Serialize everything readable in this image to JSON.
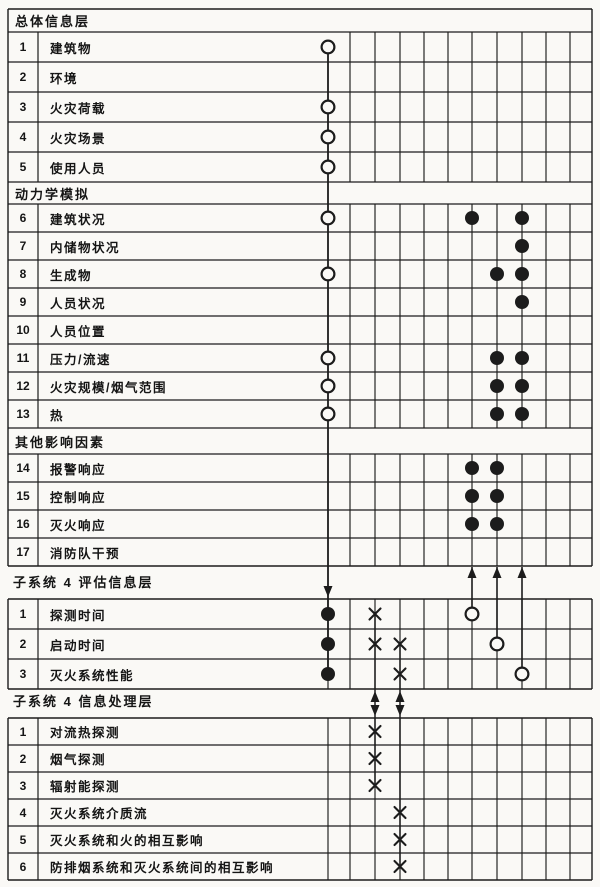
{
  "diagram": {
    "background": "#faf9f6",
    "line_color": "#1c1c1c",
    "marker_glyphs": {
      "circle": "open-circle",
      "dot": "filled-circle",
      "cross": "x-mark"
    },
    "tables": [
      {
        "id": "overall-information-layer",
        "blocks": [
          {
            "type": "band",
            "label": "总体信息层"
          },
          {
            "type": "row",
            "num": "1",
            "label": "建筑物",
            "markers": [
              "A:circle"
            ]
          },
          {
            "type": "row",
            "num": "2",
            "label": "环境",
            "markers": []
          },
          {
            "type": "row",
            "num": "3",
            "label": "火灾荷载",
            "markers": [
              "A:circle"
            ]
          },
          {
            "type": "row",
            "num": "4",
            "label": "火灾场景",
            "markers": [
              "A:circle"
            ]
          },
          {
            "type": "row",
            "num": "5",
            "label": "使用人员",
            "markers": [
              "A:circle"
            ]
          },
          {
            "type": "band",
            "label": "动力学模拟"
          },
          {
            "type": "row",
            "num": "6",
            "label": "建筑状况",
            "markers": [
              "A:circle",
              "S1:dot",
              "S3:dot"
            ]
          },
          {
            "type": "row",
            "num": "7",
            "label": "内储物状况",
            "markers": [
              "S3:dot"
            ]
          },
          {
            "type": "row",
            "num": "8",
            "label": "生成物",
            "markers": [
              "A:circle",
              "S2:dot",
              "S3:dot"
            ]
          },
          {
            "type": "row",
            "num": "9",
            "label": "人员状况",
            "markers": [
              "S3:dot"
            ]
          },
          {
            "type": "row",
            "num": "10",
            "label": "人员位置",
            "markers": []
          },
          {
            "type": "row",
            "num": "11",
            "label": "压力/流速",
            "markers": [
              "A:circle",
              "S2:dot",
              "S3:dot"
            ]
          },
          {
            "type": "row",
            "num": "12",
            "label": "火灾规模/烟气范围",
            "markers": [
              "A:circle",
              "S2:dot",
              "S3:dot"
            ]
          },
          {
            "type": "row",
            "num": "13",
            "label": "热",
            "markers": [
              "A:circle",
              "S2:dot",
              "S3:dot"
            ]
          },
          {
            "type": "band",
            "label": "其他影响因素"
          },
          {
            "type": "row",
            "num": "14",
            "label": "报警响应",
            "markers": [
              "S1:dot",
              "S2:dot"
            ]
          },
          {
            "type": "row",
            "num": "15",
            "label": "控制响应",
            "markers": [
              "S1:dot",
              "S2:dot"
            ]
          },
          {
            "type": "row",
            "num": "16",
            "label": "灭火响应",
            "markers": [
              "S1:dot",
              "S2:dot"
            ]
          },
          {
            "type": "row",
            "num": "17",
            "label": "消防队干预",
            "markers": []
          }
        ]
      },
      {
        "id": "subsystem4-evaluation-layer",
        "title": "子系统 4 评估信息层",
        "blocks": [
          {
            "type": "row",
            "num": "1",
            "label": "探测时间",
            "markers": [
              "A:dot",
              "X1:cross",
              "S1:circle"
            ]
          },
          {
            "type": "row",
            "num": "2",
            "label": "启动时间",
            "markers": [
              "A:dot",
              "X1:cross",
              "X2:cross",
              "S2:circle"
            ]
          },
          {
            "type": "row",
            "num": "3",
            "label": "灭火系统性能",
            "markers": [
              "A:dot",
              "X2:cross",
              "S3:circle"
            ]
          }
        ]
      },
      {
        "id": "subsystem4-processing-layer",
        "title": "子系统 4 信息处理层",
        "blocks": [
          {
            "type": "row",
            "num": "1",
            "label": "对流热探测",
            "markers": [
              "X1:cross"
            ]
          },
          {
            "type": "row",
            "num": "2",
            "label": "烟气探测",
            "markers": [
              "X1:cross"
            ]
          },
          {
            "type": "row",
            "num": "3",
            "label": "辐射能探测",
            "markers": [
              "X1:cross"
            ]
          },
          {
            "type": "row",
            "num": "4",
            "label": "灭火系统介质流",
            "markers": [
              "X2:cross"
            ]
          },
          {
            "type": "row",
            "num": "5",
            "label": "灭火系统和火的相互影响",
            "markers": [
              "X2:cross"
            ]
          },
          {
            "type": "row",
            "num": "6",
            "label": "防排烟系统和灭火系统间的相互影响",
            "markers": [
              "X2:cross"
            ]
          }
        ]
      }
    ]
  }
}
